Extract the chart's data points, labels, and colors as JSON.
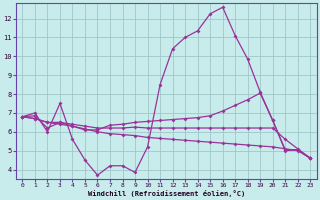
{
  "xlabel": "Windchill (Refroidissement éolien,°C)",
  "xlim": [
    -0.5,
    23.5
  ],
  "ylim": [
    3.5,
    12.8
  ],
  "yticks": [
    4,
    5,
    6,
    7,
    8,
    9,
    10,
    11,
    12
  ],
  "xticks": [
    0,
    1,
    2,
    3,
    4,
    5,
    6,
    7,
    8,
    9,
    10,
    11,
    12,
    13,
    14,
    15,
    16,
    17,
    18,
    19,
    20,
    21,
    22,
    23
  ],
  "bg_color": "#c8ecec",
  "grid_color": "#a0c8c8",
  "line_color": "#993399",
  "line1_x": [
    0,
    1,
    2,
    3,
    4,
    5,
    6,
    7,
    8,
    9,
    10,
    11,
    12,
    13,
    14,
    15,
    16,
    17,
    18,
    19,
    20,
    21,
    22,
    23
  ],
  "line1_y": [
    6.8,
    7.0,
    6.0,
    7.5,
    5.6,
    4.5,
    3.7,
    4.2,
    4.2,
    3.85,
    5.2,
    8.5,
    10.4,
    11.0,
    11.35,
    12.25,
    12.6,
    11.1,
    9.85,
    8.1,
    6.6,
    5.0,
    5.05,
    4.6
  ],
  "line2_x": [
    0,
    1,
    2,
    3,
    4,
    5,
    6,
    7,
    8,
    9,
    10,
    11,
    12,
    13,
    14,
    15,
    16,
    17,
    18,
    19,
    20,
    21,
    22,
    23
  ],
  "line2_y": [
    6.8,
    6.85,
    6.2,
    6.5,
    6.3,
    6.1,
    6.1,
    6.35,
    6.4,
    6.5,
    6.55,
    6.6,
    6.65,
    6.7,
    6.75,
    6.85,
    7.1,
    7.4,
    7.7,
    8.05,
    6.6,
    5.05,
    5.05,
    4.6
  ],
  "line3_x": [
    0,
    1,
    2,
    3,
    4,
    5,
    6,
    7,
    8,
    9,
    10,
    11,
    12,
    13,
    14,
    15,
    16,
    17,
    18,
    19,
    20,
    21,
    22,
    23
  ],
  "line3_y": [
    6.8,
    6.7,
    6.5,
    6.5,
    6.4,
    6.3,
    6.2,
    6.2,
    6.2,
    6.25,
    6.2,
    6.2,
    6.2,
    6.2,
    6.2,
    6.2,
    6.2,
    6.2,
    6.2,
    6.2,
    6.2,
    5.6,
    5.1,
    4.6
  ],
  "line4_x": [
    0,
    1,
    2,
    3,
    4,
    5,
    6,
    7,
    8,
    9,
    10,
    11,
    12,
    13,
    14,
    15,
    16,
    17,
    18,
    19,
    20,
    21,
    22,
    23
  ],
  "line4_y": [
    6.8,
    6.7,
    6.5,
    6.4,
    6.3,
    6.15,
    6.0,
    5.9,
    5.85,
    5.8,
    5.7,
    5.65,
    5.6,
    5.55,
    5.5,
    5.45,
    5.4,
    5.35,
    5.3,
    5.25,
    5.2,
    5.1,
    5.0,
    4.6
  ],
  "marker": "D",
  "markersize": 2.0,
  "linewidth": 0.9
}
